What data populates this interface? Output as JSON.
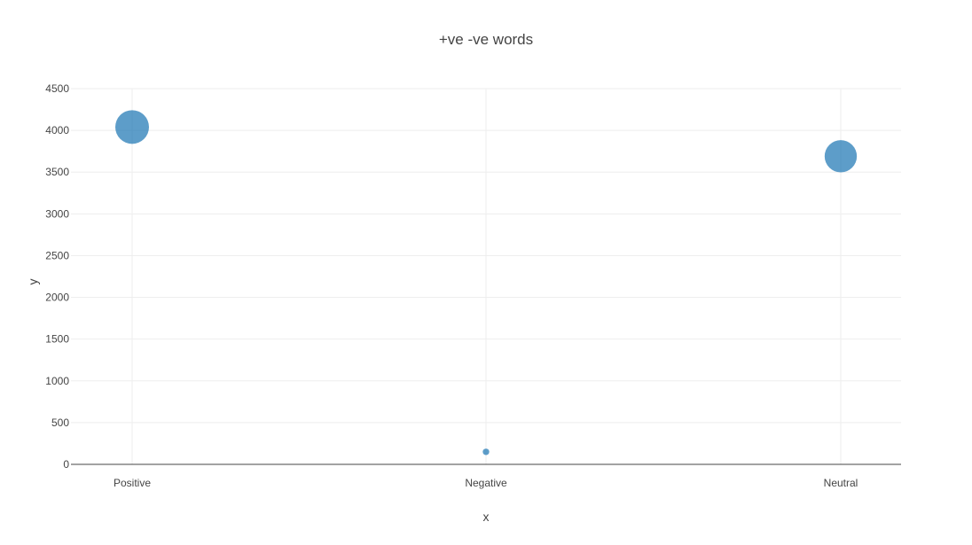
{
  "chart_data": {
    "type": "scatter",
    "title": "+ve -ve words",
    "xlabel": "x",
    "ylabel": "y",
    "categories": [
      "Positive",
      "Negative",
      "Neutral"
    ],
    "values": [
      4040,
      150,
      3690
    ],
    "ylim": [
      0,
      4500
    ],
    "yticks": [
      0,
      500,
      1000,
      1500,
      2000,
      2500,
      3000,
      3500,
      4000,
      4500
    ],
    "grid": true,
    "marker_color": "#1f77b4"
  }
}
